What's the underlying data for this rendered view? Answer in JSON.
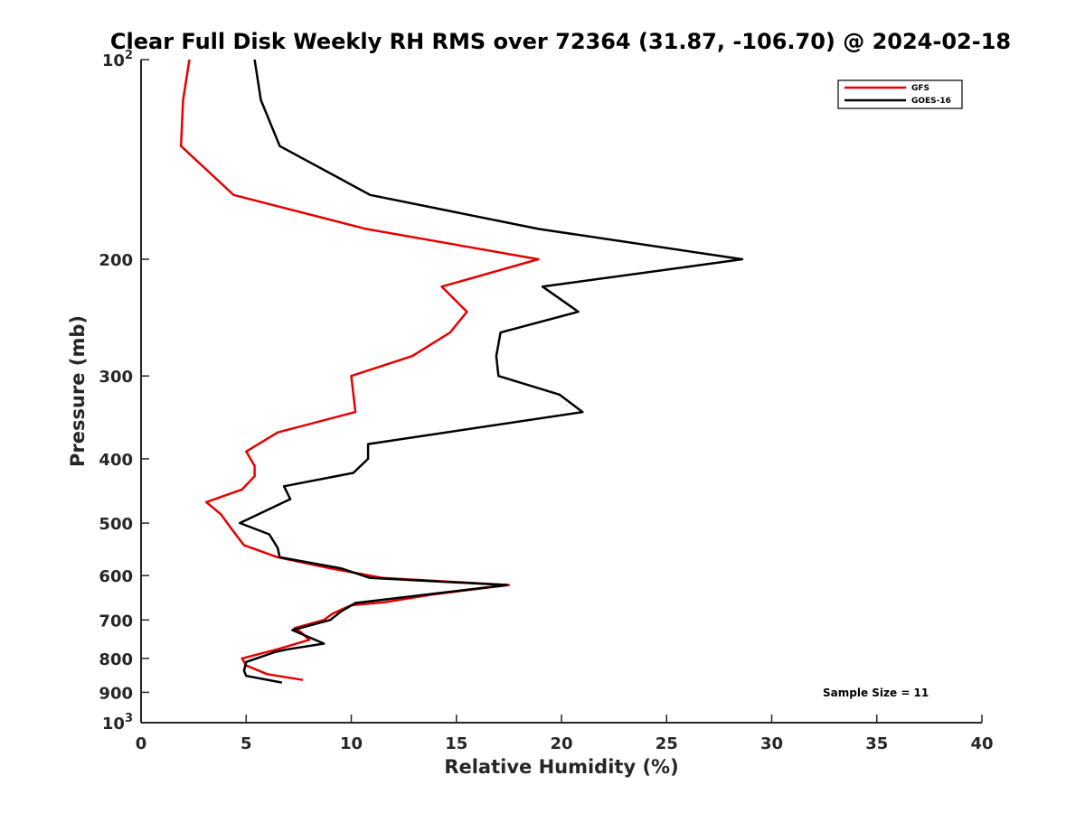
{
  "chart_data": {
    "type": "line",
    "title": "Clear Full Disk Weekly RH RMS over 72364 (31.87, -106.70) @ 2024-02-18",
    "xlabel": "Relative Humidity (%)",
    "ylabel": "Pressure (mb)",
    "xlim": [
      0,
      40
    ],
    "ylim": [
      100,
      1000
    ],
    "y_scale": "log",
    "y_reversed": true,
    "x_ticks": [
      "0",
      "5",
      "10",
      "15",
      "20",
      "25",
      "30",
      "35",
      "40"
    ],
    "y_ticks": [
      {
        "value": 100,
        "base": "10",
        "exp": "2"
      },
      {
        "value": 200,
        "label": "200"
      },
      {
        "value": 300,
        "label": "300"
      },
      {
        "value": 400,
        "label": "400"
      },
      {
        "value": 500,
        "label": "500"
      },
      {
        "value": 600,
        "label": "600"
      },
      {
        "value": 700,
        "label": "700"
      },
      {
        "value": 800,
        "label": "800"
      },
      {
        "value": 900,
        "label": "900"
      },
      {
        "value": 1000,
        "base": "10",
        "exp": "3"
      }
    ],
    "grid": false,
    "legend_position": "top-right",
    "annotation": "Sample Size = 11",
    "series": [
      {
        "name": "GFS",
        "color": "#e60000",
        "points": [
          [
            2.3,
            100
          ],
          [
            2.0,
            115
          ],
          [
            1.9,
            135
          ],
          [
            4.4,
            160
          ],
          [
            10.7,
            180
          ],
          [
            18.9,
            200
          ],
          [
            14.3,
            220
          ],
          [
            15.5,
            240
          ],
          [
            14.7,
            258
          ],
          [
            12.9,
            280
          ],
          [
            10.0,
            300
          ],
          [
            10.2,
            340
          ],
          [
            6.5,
            365
          ],
          [
            5.0,
            390
          ],
          [
            5.4,
            410
          ],
          [
            5.4,
            425
          ],
          [
            4.8,
            445
          ],
          [
            3.1,
            465
          ],
          [
            3.8,
            485
          ],
          [
            4.1,
            500
          ],
          [
            4.5,
            520
          ],
          [
            4.9,
            540
          ],
          [
            6.5,
            563
          ],
          [
            9.0,
            585
          ],
          [
            11.5,
            605
          ],
          [
            17.5,
            620
          ],
          [
            14.0,
            640
          ],
          [
            11.6,
            658
          ],
          [
            10.0,
            665
          ],
          [
            9.1,
            685
          ],
          [
            8.7,
            700
          ],
          [
            7.3,
            720
          ],
          [
            7.6,
            730
          ],
          [
            8.0,
            750
          ],
          [
            6.5,
            775
          ],
          [
            4.8,
            800
          ],
          [
            5.0,
            820
          ],
          [
            6.0,
            845
          ],
          [
            7.7,
            862
          ]
        ]
      },
      {
        "name": "GOES-16",
        "color": "#000000",
        "points": [
          [
            5.4,
            100
          ],
          [
            5.7,
            115
          ],
          [
            6.6,
            135
          ],
          [
            10.9,
            160
          ],
          [
            18.9,
            180
          ],
          [
            28.6,
            200
          ],
          [
            19.1,
            220
          ],
          [
            20.8,
            240
          ],
          [
            17.1,
            258
          ],
          [
            16.9,
            280
          ],
          [
            17.0,
            300
          ],
          [
            19.9,
            320
          ],
          [
            21.0,
            340
          ],
          [
            10.8,
            380
          ],
          [
            10.8,
            400
          ],
          [
            10.1,
            420
          ],
          [
            6.8,
            440
          ],
          [
            7.1,
            460
          ],
          [
            4.7,
            500
          ],
          [
            6.1,
            520
          ],
          [
            6.5,
            545
          ],
          [
            6.6,
            563
          ],
          [
            9.5,
            585
          ],
          [
            10.9,
            605
          ],
          [
            17.4,
            620
          ],
          [
            10.2,
            660
          ],
          [
            9.5,
            680
          ],
          [
            9.0,
            700
          ],
          [
            7.2,
            725
          ],
          [
            8.7,
            760
          ],
          [
            7.0,
            775
          ],
          [
            6.4,
            782
          ],
          [
            5.0,
            810
          ],
          [
            4.9,
            835
          ],
          [
            5.0,
            850
          ],
          [
            6.7,
            870
          ]
        ]
      }
    ]
  }
}
